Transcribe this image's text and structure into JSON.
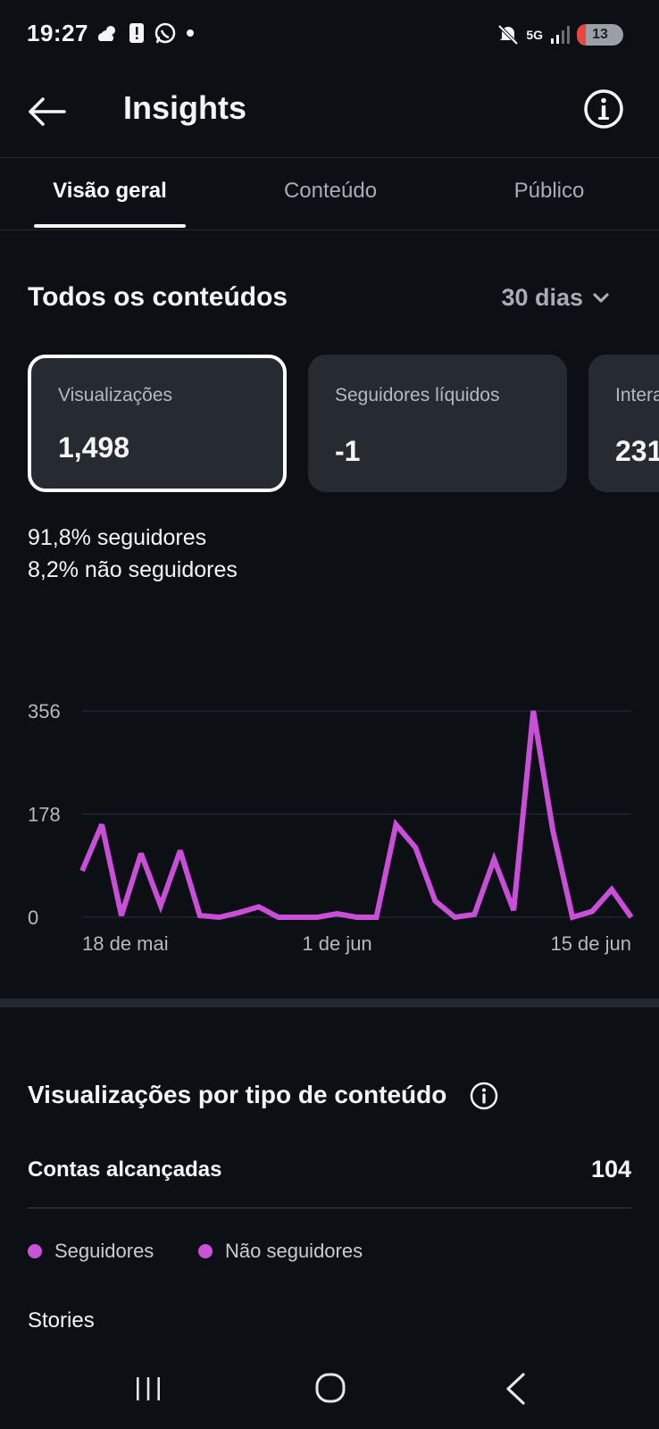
{
  "status_bar": {
    "time": "19:27",
    "network": "5G",
    "battery": "13",
    "icons_left": [
      "cloud-sun-icon",
      "alert-icon",
      "whatsapp-icon",
      "dot-icon"
    ],
    "icons_right": [
      "mute-icon",
      "network-5g-icon",
      "signal-icon",
      "battery-icon"
    ]
  },
  "header": {
    "title": "Insights"
  },
  "tabs": [
    {
      "label": "Visão geral",
      "active": true
    },
    {
      "label": "Conteúdo",
      "active": false
    },
    {
      "label": "Público",
      "active": false
    }
  ],
  "overview": {
    "section_title": "Todos os conteúdos",
    "period": "30 dias"
  },
  "cards": [
    {
      "label": "Visualizações",
      "value": "1,498",
      "selected": true
    },
    {
      "label": "Seguidores líquidos",
      "value": "-1",
      "selected": false
    },
    {
      "label": "Interações",
      "value": "231",
      "selected": false
    }
  ],
  "audience_split": {
    "followers": "91,8% seguidores",
    "non_followers": "8,2% não seguidores"
  },
  "chart_data": {
    "type": "line",
    "title": "",
    "xlabel": "",
    "ylabel": "",
    "y_ticks": [
      "356",
      "178",
      "0"
    ],
    "ylim": [
      0,
      356
    ],
    "x_tick_labels": [
      "18 de mai",
      "1 de jun",
      "15 de jun"
    ],
    "x_tick_index": [
      1,
      13,
      25
    ],
    "grid": true,
    "color": "#c94fd8",
    "series": [
      {
        "values": [
          80,
          160,
          3,
          110,
          20,
          115,
          3,
          0,
          8,
          18,
          0,
          0,
          0,
          6,
          0,
          0,
          160,
          120,
          28,
          0,
          5,
          100,
          12,
          356,
          150,
          0,
          10,
          48,
          0
        ]
      }
    ]
  },
  "content_type": {
    "title": "Visualizações por tipo de conteúdo",
    "reached_label": "Contas alcançadas",
    "reached_value": "104",
    "legend": [
      "Seguidores",
      "Não seguidores"
    ],
    "first_category": "Stories"
  },
  "nav_bar": {
    "icons": [
      "recent-apps-icon",
      "home-icon",
      "back-icon"
    ]
  }
}
